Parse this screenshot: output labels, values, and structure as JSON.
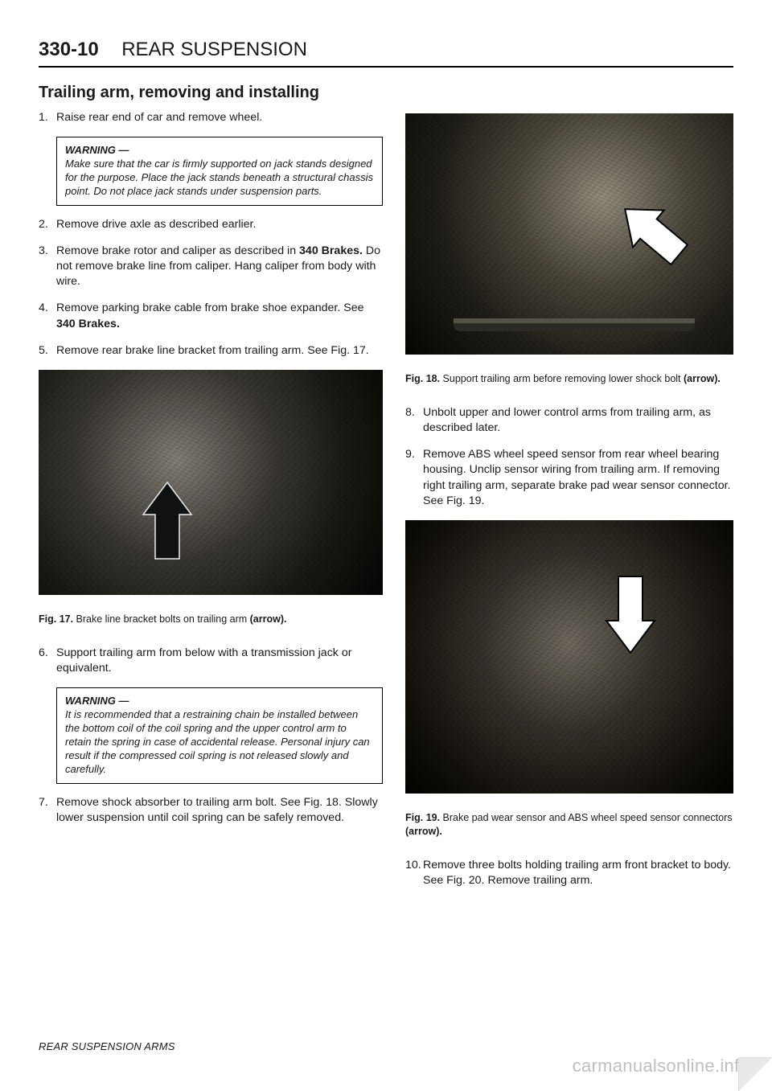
{
  "colors": {
    "text": "#1a1a1a",
    "rule": "#000000",
    "photo_dark": "#1c1b17",
    "photo_mid": "#3a3832",
    "photo_light": "#7d7a72",
    "arrow_fill": "#111111",
    "arrow_white": "#ffffff",
    "watermark": "#bfbfbf"
  },
  "typography": {
    "body_pt": 14.2,
    "caption_pt": 12.5,
    "title_pt": 20,
    "header_pt": 24,
    "warning_pt": 13
  },
  "header": {
    "page_number": "330-10",
    "chapter_title": "REAR SUSPENSION"
  },
  "section_title": "Trailing arm, removing and installing",
  "steps_left_a": [
    {
      "n": "1.",
      "text": "Raise rear end of car and remove wheel."
    }
  ],
  "warning1": {
    "title": "WARNING —",
    "text": "Make sure that the car is firmly supported on jack stands designed for the purpose. Place the jack stands beneath a structural chassis point. Do not place jack stands under suspension parts."
  },
  "steps_left_b": [
    {
      "n": "2.",
      "text": "Remove drive axle as described earlier."
    },
    {
      "n": "3.",
      "html": "Remove brake rotor and caliper as described in <b>340 Brakes.</b> Do not remove brake line from caliper. Hang caliper from body with wire."
    },
    {
      "n": "4.",
      "html": "Remove parking brake cable from brake shoe expander. See <b>340 Brakes.</b>"
    },
    {
      "n": "5.",
      "text": "Remove rear brake line bracket from trailing arm. See Fig. 17."
    }
  ],
  "fig17": {
    "image_number": "0013144",
    "caption_lead": "Fig. 17.",
    "caption_rest": " Brake line bracket bolts on trailing arm ",
    "caption_bold_tail": "(arrow)."
  },
  "steps_left_c": [
    {
      "n": "6.",
      "text": "Support trailing arm from below with a transmission jack or equivalent."
    }
  ],
  "warning2": {
    "title": "WARNING —",
    "text": "It is recommended that a restraining chain be installed between the bottom coil of the coil spring and the upper control arm to retain the spring in case of accidental release. Personal injury can result if the compressed coil spring is not released slowly and carefully."
  },
  "steps_left_d": [
    {
      "n": "7.",
      "text": "Remove shock absorber to trailing arm bolt. See Fig. 18. Slowly lower suspension until coil spring can be safely removed."
    }
  ],
  "fig18": {
    "image_number": "0013220",
    "caption_lead": "Fig. 18.",
    "caption_rest": " Support trailing arm before removing lower shock bolt ",
    "caption_bold_tail": "(arrow)."
  },
  "steps_right": [
    {
      "n": "8.",
      "text": "Unbolt upper and lower control arms from trailing arm, as described later."
    },
    {
      "n": "9.",
      "text": "Remove ABS wheel speed sensor from rear wheel bearing housing. Unclip sensor wiring from trailing arm. If removing right trailing arm, separate brake pad wear sensor connector. See Fig. 19."
    }
  ],
  "fig19": {
    "image_number": "0012104",
    "caption_lead": "Fig. 19.",
    "caption_rest": " Brake pad wear sensor and ABS wheel speed sensor connectors ",
    "caption_bold_tail": "(arrow)."
  },
  "steps_right_b": [
    {
      "n": "10.",
      "text": "Remove three bolts holding trailing arm front bracket to body. See Fig. 20. Remove trailing arm."
    }
  ],
  "footer": "REAR SUSPENSION ARMS",
  "watermark": "carmanualsonline.info"
}
